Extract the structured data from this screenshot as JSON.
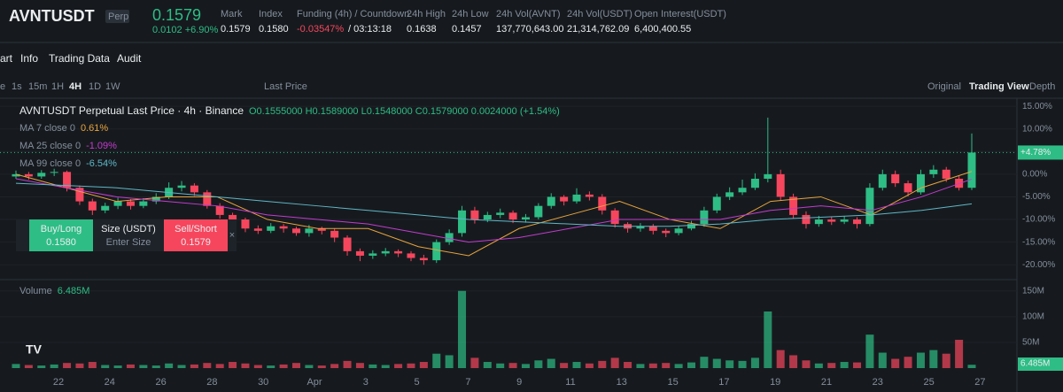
{
  "header": {
    "symbol": "AVNTUSDT",
    "badge": "Perp",
    "price": "0.1579",
    "change": "0.0102 +6.90%",
    "stats": [
      {
        "label": "Mark",
        "value": "0.1579"
      },
      {
        "label": "Index",
        "value": "0.1580"
      },
      {
        "label": "Funding (4h) / Countdown",
        "value": "-0.03547%",
        "extra": "/ 03:13:18"
      },
      {
        "label": "24h High",
        "value": "0.1638"
      },
      {
        "label": "24h Low",
        "value": "0.1457"
      },
      {
        "label": "24h Vol(AVNT)",
        "value": "137,770,643.00"
      },
      {
        "label": "24h Vol(USDT)",
        "value": "21,314,762.09"
      },
      {
        "label": "Open Interest(USDT)",
        "value": "6,400,400.55"
      }
    ]
  },
  "tabs": [
    "art",
    "Info",
    "Trading Data",
    "Audit"
  ],
  "toolbar": {
    "intervals": [
      "e",
      "1s",
      "15m",
      "1H",
      "4H",
      "1D",
      "1W"
    ],
    "price_type": "Last Price",
    "views": [
      "Original",
      "Trading View",
      "Depth"
    ]
  },
  "order": {
    "buy": "Buy/Long",
    "buy_price": "0.1580",
    "size": "Size (USDT)",
    "size_hint": "Enter Size",
    "sell": "Sell/Short",
    "sell_price": "0.1579"
  },
  "chart_data": {
    "type": "candlestick",
    "title": "AVNTUSDT Perpetual Last Price · 4h · Binance",
    "ohlc": "O0.1555000 H0.1589000 L0.1548000 C0.1579000 0.0024000 (+1.54%)",
    "up_color": "#2ebd85",
    "down_color": "#f6465d",
    "open": [
      -0.5,
      0,
      -0.5,
      0.3,
      0.5,
      -3,
      -6,
      -8,
      -7,
      -6,
      -7,
      -6,
      -5,
      -3,
      -2.5,
      -4,
      -7,
      -9,
      -10,
      -12,
      -12.5,
      -11.5,
      -12,
      -13,
      -12,
      -12.5,
      -14,
      -17,
      -18,
      -17.5,
      -17,
      -17.5,
      -18.5,
      -19,
      -15,
      -13,
      -8,
      -10,
      -9,
      -8.5,
      -10,
      -9.5,
      -7,
      -5,
      -6,
      -4.5,
      -5,
      -8,
      -11,
      -12,
      -11.5,
      -12.5,
      -13,
      -12,
      -11,
      -8,
      -5,
      -4,
      -3,
      -1,
      0,
      -5,
      -9,
      -11,
      -10,
      -10.5,
      -10,
      -11,
      -3,
      0,
      -2,
      -4,
      0,
      1,
      -1,
      -3
    ],
    "high": [
      0.8,
      0.5,
      0.9,
      1.2,
      0.8,
      -2.5,
      -5.4,
      -6.3,
      -5.2,
      -5.5,
      -5.3,
      -4.2,
      -1.8,
      -1.5,
      -2,
      -3.5,
      -6.4,
      -8.5,
      -9.6,
      -11.3,
      -10.8,
      -11,
      -11.6,
      -11.2,
      -11.6,
      -12,
      -13.5,
      -16.4,
      -16.8,
      -16.3,
      -16.6,
      -17,
      -17.8,
      -14.4,
      -12.2,
      -7,
      -7.2,
      -8.3,
      -7.6,
      -8,
      -8.8,
      -6.4,
      -4.2,
      -4.6,
      -3.1,
      -3.8,
      -4.4,
      -7.5,
      -10.6,
      -10.8,
      -11,
      -12,
      -11.4,
      -10.3,
      -7.2,
      -4.3,
      -2.9,
      -1.2,
      0.2,
      12.5,
      1,
      -4.3,
      -8.2,
      -9.2,
      -9.4,
      -9.3,
      -9.5,
      -2,
      1,
      0.8,
      -1.4,
      1,
      2,
      1.6,
      -0.4,
      9
    ],
    "low": [
      -1,
      -1.2,
      -1,
      -0.4,
      -3.8,
      -6.8,
      -9,
      -8.6,
      -7.7,
      -7.8,
      -7.5,
      -6.6,
      -5.5,
      -3.8,
      -4.8,
      -7.6,
      -9.8,
      -11,
      -12.8,
      -13.2,
      -13,
      -12.9,
      -13.6,
      -13.8,
      -13.3,
      -15,
      -18,
      -19.2,
      -18.7,
      -18.1,
      -18.3,
      -19.2,
      -20,
      -19.6,
      -15.6,
      -13.8,
      -10.9,
      -10.6,
      -9.7,
      -10.8,
      -10.7,
      -10,
      -7.6,
      -6.9,
      -6.5,
      -5.8,
      -8.9,
      -11.8,
      -12.9,
      -12.7,
      -13.3,
      -13.9,
      -13.5,
      -12.4,
      -11.6,
      -8.6,
      -5.7,
      -4.6,
      -3.5,
      -1.8,
      -5.8,
      -9.7,
      -12,
      -11.6,
      -11.2,
      -11,
      -12,
      -11.5,
      -3.6,
      -2.8,
      -4.9,
      -4.5,
      -0.8,
      -1.7,
      -3.6,
      -3.5
    ],
    "close": [
      0,
      -0.5,
      0.3,
      0.5,
      -3,
      -6,
      -8,
      -7,
      -6,
      -7,
      -6,
      -5,
      -3,
      -2.5,
      -4,
      -7,
      -9,
      -10,
      -12,
      -12.5,
      -11.5,
      -12,
      -13,
      -12,
      -12.5,
      -14,
      -17,
      -18,
      -17.5,
      -17,
      -17.5,
      -18.5,
      -19,
      -15,
      -13,
      -8,
      -10,
      -9,
      -8.5,
      -10,
      -9.5,
      -7,
      -5,
      -6,
      -4.5,
      -5,
      -8,
      -11,
      -12,
      -11.5,
      -12.5,
      -13,
      -12,
      -11,
      -8,
      -5,
      -4,
      -3,
      -1,
      0,
      -5,
      -9,
      -11,
      -10,
      -10.5,
      -10,
      -11,
      -3,
      0,
      -2,
      -4,
      0,
      1,
      -1,
      -3,
      4.78
    ],
    "volumes": [
      8,
      6,
      5,
      7,
      10,
      9,
      12,
      6,
      5,
      7,
      6,
      5,
      9,
      6,
      7,
      10,
      8,
      12,
      9,
      6,
      5,
      7,
      10,
      6,
      5,
      8,
      14,
      10,
      7,
      6,
      8,
      9,
      12,
      28,
      25,
      150,
      20,
      12,
      9,
      10,
      8,
      15,
      18,
      10,
      12,
      9,
      14,
      20,
      12,
      8,
      9,
      10,
      8,
      11,
      22,
      18,
      15,
      14,
      20,
      110,
      35,
      25,
      15,
      9,
      10,
      12,
      11,
      65,
      30,
      18,
      22,
      30,
      35,
      28,
      55,
      6.485
    ],
    "ma": [
      {
        "name": "MA 7 close 0",
        "value_label": "0.61%",
        "color": "#e8a33d",
        "values": [
          0,
          -3,
          -6,
          -5,
          -5,
          -10,
          -12,
          -12,
          -16,
          -18,
          -12,
          -9,
          -6,
          -10,
          -12,
          -6,
          -5,
          -9,
          -3,
          0.61
        ]
      },
      {
        "name": "MA 25 close 0",
        "value_label": "-1.09%",
        "color": "#c43bd0",
        "values": [
          -1,
          -3,
          -5,
          -6,
          -7,
          -9,
          -10,
          -11,
          -13,
          -15,
          -14,
          -12,
          -10,
          -10,
          -10,
          -8,
          -7,
          -8,
          -5,
          -1.09
        ]
      },
      {
        "name": "MA 99 close 0",
        "value_label": "-6.54%",
        "color": "#5fb7c7",
        "values": [
          -2,
          -2.5,
          -3,
          -4,
          -5,
          -6,
          -7,
          -8,
          -9,
          -10,
          -10.5,
          -11,
          -11.5,
          -11.5,
          -11,
          -10,
          -9.5,
          -9,
          -8,
          -6.54
        ]
      }
    ],
    "last_value": 4.78,
    "last_label": "+4.78%",
    "ylim": [
      -22.5,
      16
    ],
    "yticks": [
      {
        "value": 15,
        "label": "15.00%"
      },
      {
        "value": 10,
        "label": "10.00%"
      },
      {
        "value": 5,
        "label": "5.00%"
      },
      {
        "value": 0,
        "label": "0.00%"
      },
      {
        "value": -5,
        "label": "-5.00%"
      },
      {
        "value": -10,
        "label": "-10.00%"
      },
      {
        "value": -15,
        "label": "-15.00%"
      },
      {
        "value": -20,
        "label": "-20.00%"
      }
    ],
    "volume_title": "Volume",
    "volume_value_label": "6.485M",
    "vlim": [
      0,
      165
    ],
    "vticks": [
      {
        "value": 50,
        "label": "50M"
      },
      {
        "value": 100,
        "label": "100M"
      },
      {
        "value": 150,
        "label": "150M"
      }
    ],
    "x_labels": [
      "22",
      "24",
      "26",
      "28",
      "30",
      "Apr",
      "3",
      "5",
      "7",
      "9",
      "11",
      "13",
      "15",
      "17",
      "19",
      "21",
      "23",
      "25",
      "27"
    ]
  }
}
